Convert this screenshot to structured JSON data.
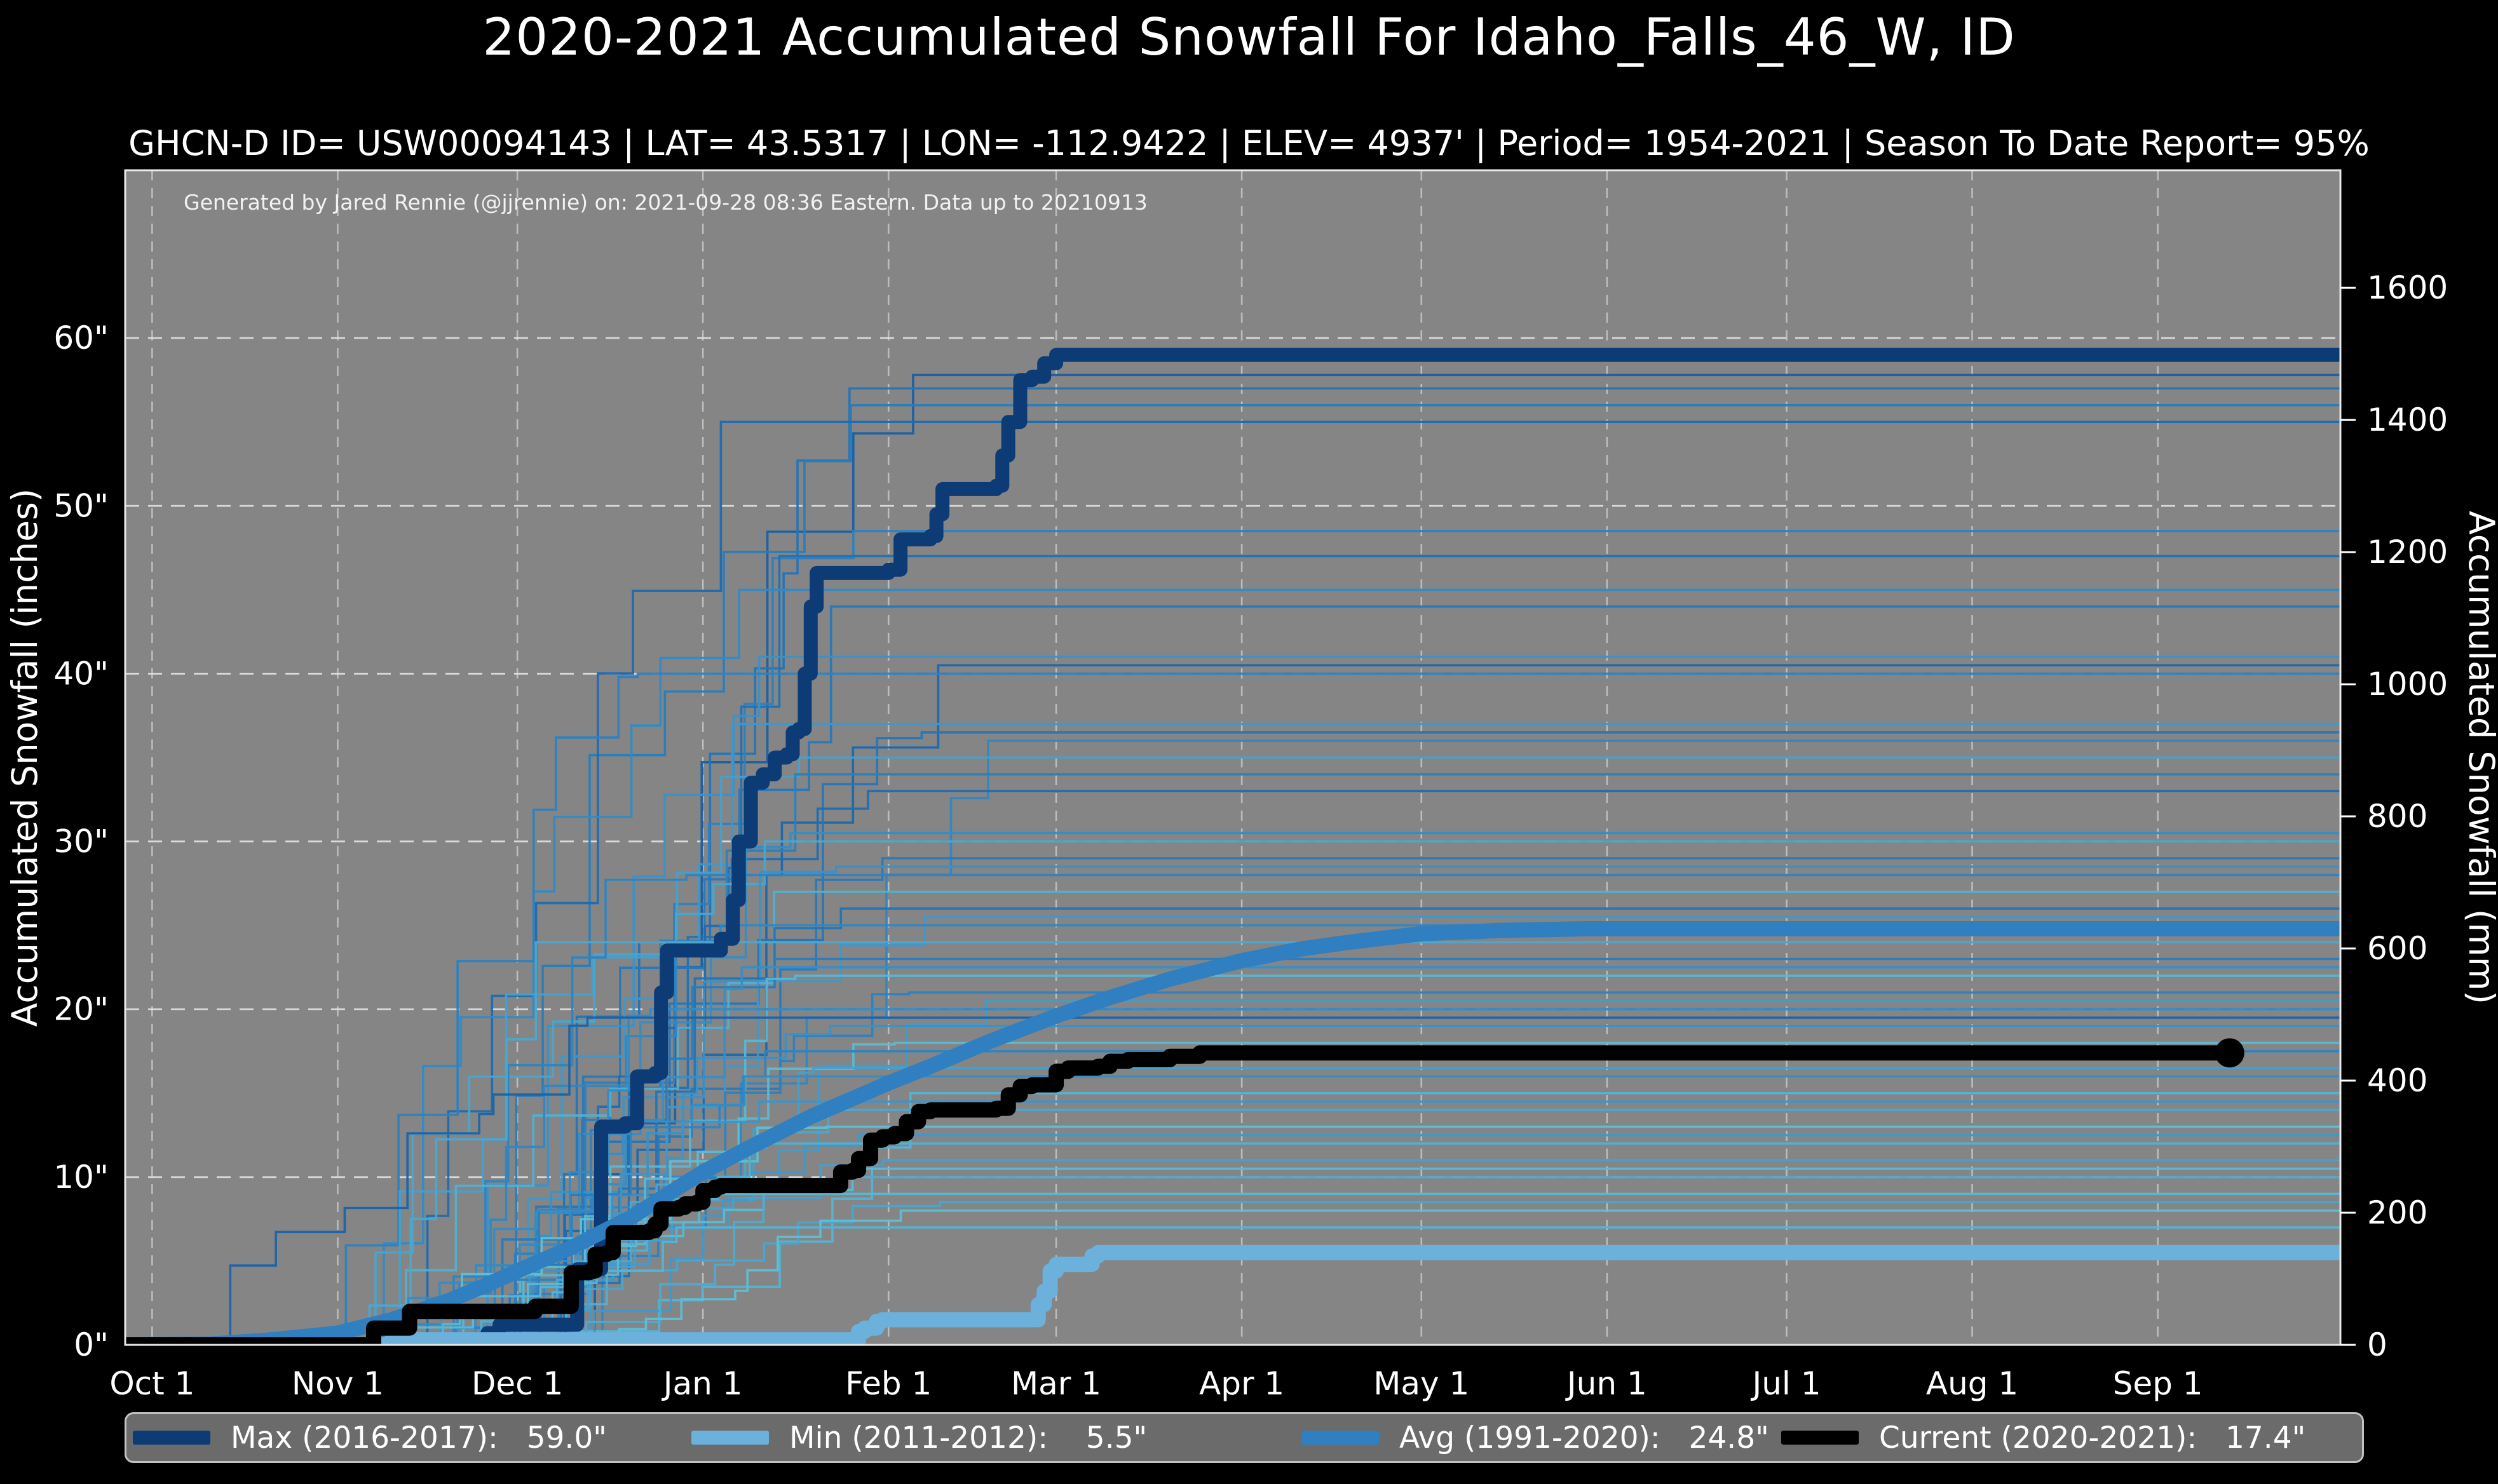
{
  "header": {
    "title": "2020-2021 Accumulated Snowfall For Idaho_Falls_46_W, ID",
    "subtitle": "GHCN-D ID= USW00094143 | LAT= 43.5317 | LON= -112.9422 | ELEV= 4937' | Period= 1954-2021 | Season To Date Report= 95%"
  },
  "watermark": "Generated by Jared Rennie (@jjrennie) on: 2021-09-28 08:36 Eastern. Data up to 20210913",
  "legend": {
    "items": [
      {
        "name": "max",
        "label": "Max (2016-2017):   59.0\"",
        "color": "#0d3b76"
      },
      {
        "name": "min",
        "label": "Min (2011-2012):    5.5\"",
        "color": "#6cb0dc"
      },
      {
        "name": "avg",
        "label": "Avg (1991-2020):   24.8\"",
        "color": "#2f7fc1"
      },
      {
        "name": "current",
        "label": "Current (2020-2021):   17.4\"",
        "color": "#000000"
      }
    ]
  },
  "chart_data": {
    "type": "line",
    "title": "2020-2021 Accumulated Snowfall For Idaho_Falls_46_W, ID",
    "x_axis": {
      "unit": "day-of-season (0 = Oct 1)",
      "domain": [
        -4.5,
        365.5
      ],
      "ticks": [
        {
          "label": "Oct 1",
          "day": 0
        },
        {
          "label": "Nov 1",
          "day": 31
        },
        {
          "label": "Dec 1",
          "day": 61
        },
        {
          "label": "Jan 1",
          "day": 92
        },
        {
          "label": "Feb 1",
          "day": 123
        },
        {
          "label": "Mar 1",
          "day": 151
        },
        {
          "label": "Apr 1",
          "day": 182
        },
        {
          "label": "May 1",
          "day": 212
        },
        {
          "label": "Jun 1",
          "day": 243
        },
        {
          "label": "Jul 1",
          "day": 273
        },
        {
          "label": "Aug 1",
          "day": 304
        },
        {
          "label": "Sep 1",
          "day": 335
        }
      ],
      "grid": true
    },
    "y_axis_left": {
      "label": "Accumulated Snowfall (inches)",
      "domain": [
        0,
        70
      ],
      "ticks": [
        0,
        10,
        20,
        30,
        40,
        50,
        60
      ],
      "tick_suffix": "\"",
      "grid": true
    },
    "y_axis_right": {
      "label": "Accumulated Snowfall (mm)",
      "domain_mm": [
        0,
        1778
      ],
      "ticks": [
        0,
        200,
        400,
        600,
        800,
        1000,
        1200,
        1400,
        1600
      ],
      "mm_per_inch": 25.4
    },
    "plot_style": {
      "background": "#858585",
      "grid_color_h": "#e3e3e3",
      "grid_color_v": "#c6c6c6",
      "spine_color": "#e8e8e8",
      "thin_palette": [
        "#64c7d8",
        "#3a93c9",
        "#1f6fb4",
        "#10407f"
      ]
    },
    "series": {
      "max": {
        "name": "Max (2016-2017)",
        "final": 59.0,
        "color": "#0d3b76",
        "width": 22,
        "style": "step",
        "points": [
          [
            -4.5,
            0
          ],
          [
            54,
            0
          ],
          [
            56,
            0.7
          ],
          [
            58,
            1.2
          ],
          [
            70,
            1.2
          ],
          [
            71,
            4.5
          ],
          [
            74,
            4.5
          ],
          [
            75,
            13.0
          ],
          [
            79,
            13.2
          ],
          [
            81,
            16.0
          ],
          [
            84,
            16.2
          ],
          [
            85,
            21.0
          ],
          [
            86,
            23.5
          ],
          [
            94,
            23.5
          ],
          [
            95,
            24.2
          ],
          [
            97,
            26.5
          ],
          [
            98,
            30.0
          ],
          [
            100,
            33.5
          ],
          [
            102,
            34.0
          ],
          [
            104,
            35.0
          ],
          [
            106,
            35.2
          ],
          [
            107,
            36.5
          ],
          [
            108,
            36.7
          ],
          [
            109,
            40.0
          ],
          [
            110,
            44.0
          ],
          [
            111,
            46.0
          ],
          [
            123,
            46.2
          ],
          [
            125,
            48.0
          ],
          [
            130,
            48.2
          ],
          [
            131,
            49.5
          ],
          [
            132,
            51.0
          ],
          [
            141,
            51.2
          ],
          [
            142,
            53.0
          ],
          [
            143,
            55.0
          ],
          [
            145,
            57.5
          ],
          [
            147,
            57.7
          ],
          [
            149,
            58.5
          ],
          [
            151,
            59.0
          ],
          [
            365.5,
            59.0
          ]
        ]
      },
      "avg": {
        "name": "Avg (1991-2020)",
        "final": 24.8,
        "color": "#2f7fc1",
        "width": 24,
        "style": "smooth",
        "points": [
          [
            -4.5,
            0
          ],
          [
            10,
            0.05
          ],
          [
            20,
            0.3
          ],
          [
            31,
            0.7
          ],
          [
            40,
            1.5
          ],
          [
            50,
            2.7
          ],
          [
            56,
            3.6
          ],
          [
            61,
            4.4
          ],
          [
            70,
            5.8
          ],
          [
            80,
            7.6
          ],
          [
            92,
            10.3
          ],
          [
            100,
            11.8
          ],
          [
            110,
            13.6
          ],
          [
            123,
            15.6
          ],
          [
            130,
            16.6
          ],
          [
            140,
            18.1
          ],
          [
            151,
            19.6
          ],
          [
            160,
            20.7
          ],
          [
            170,
            21.8
          ],
          [
            182,
            22.9
          ],
          [
            192,
            23.6
          ],
          [
            200,
            24.0
          ],
          [
            212,
            24.5
          ],
          [
            225,
            24.7
          ],
          [
            240,
            24.8
          ],
          [
            365.5,
            24.8
          ]
        ]
      },
      "min": {
        "name": "Min (2011-2012)",
        "final": 5.5,
        "color": "#6cb0dc",
        "width": 24,
        "style": "step",
        "points": [
          [
            -4.5,
            0
          ],
          [
            39,
            0
          ],
          [
            40,
            0.3
          ],
          [
            117,
            0.3
          ],
          [
            118,
            0.8
          ],
          [
            119,
            1.0
          ],
          [
            121,
            1.4
          ],
          [
            122,
            1.5
          ],
          [
            147,
            1.5
          ],
          [
            148,
            2.4
          ],
          [
            149,
            3.2
          ],
          [
            150,
            4.4
          ],
          [
            151,
            4.8
          ],
          [
            156,
            4.8
          ],
          [
            157,
            5.3
          ],
          [
            158,
            5.5
          ],
          [
            365.5,
            5.5
          ]
        ]
      },
      "current": {
        "name": "Current (2020-2021)",
        "final": 17.4,
        "color": "#000000",
        "width": 24,
        "style": "step",
        "end_marker": {
          "day": 347,
          "value": 17.4,
          "radius": 23
        },
        "points": [
          [
            -4.5,
            0
          ],
          [
            36,
            0
          ],
          [
            37,
            1.0
          ],
          [
            42,
            1.0
          ],
          [
            43,
            2.0
          ],
          [
            63,
            2.0
          ],
          [
            64,
            2.3
          ],
          [
            69,
            2.3
          ],
          [
            70,
            4.3
          ],
          [
            73,
            4.4
          ],
          [
            74,
            5.4
          ],
          [
            76,
            5.5
          ],
          [
            77,
            6.7
          ],
          [
            83,
            6.8
          ],
          [
            84,
            7.2
          ],
          [
            85,
            8.1
          ],
          [
            88,
            8.2
          ],
          [
            89,
            8.4
          ],
          [
            91,
            8.5
          ],
          [
            92,
            9.2
          ],
          [
            94,
            9.4
          ],
          [
            95,
            9.5
          ],
          [
            113,
            9.5
          ],
          [
            115,
            10.3
          ],
          [
            117,
            10.4
          ],
          [
            118,
            11.1
          ],
          [
            120,
            12.2
          ],
          [
            122,
            12.4
          ],
          [
            124,
            12.6
          ],
          [
            126,
            13.3
          ],
          [
            128,
            13.9
          ],
          [
            130,
            14.0
          ],
          [
            141,
            14.1
          ],
          [
            143,
            14.9
          ],
          [
            145,
            15.4
          ],
          [
            147,
            15.5
          ],
          [
            151,
            16.3
          ],
          [
            153,
            16.5
          ],
          [
            158,
            16.6
          ],
          [
            160,
            16.9
          ],
          [
            163,
            17.0
          ],
          [
            170,
            17.2
          ],
          [
            175,
            17.4
          ],
          [
            347,
            17.4
          ]
        ]
      }
    },
    "background_years": [
      {
        "f": 57.8,
        "s": 62,
        "k": 11,
        "t": 0.78
      },
      {
        "f": 57.0,
        "s": 55,
        "k": 12,
        "t": 0.62
      },
      {
        "f": 56.0,
        "s": 48,
        "k": 13,
        "t": 0.55
      },
      {
        "f": 55.0,
        "s": 40,
        "k": 14,
        "t": 0.7
      },
      {
        "f": 48.5,
        "s": 58,
        "k": 15,
        "t": 0.5
      },
      {
        "f": 47.0,
        "s": 66,
        "k": 16,
        "t": 0.65
      },
      {
        "f": 45.0,
        "s": 35,
        "k": 17,
        "t": 0.42
      },
      {
        "f": 44.0,
        "s": 52,
        "k": 18,
        "t": 0.58
      },
      {
        "f": 41.0,
        "s": 44,
        "k": 19,
        "t": 0.35
      },
      {
        "f": 40.5,
        "s": 60,
        "k": 20,
        "t": 0.72
      },
      {
        "f": 40.0,
        "s": 30,
        "k": 21,
        "t": 0.5
      },
      {
        "f": 37.0,
        "s": 56,
        "k": 22,
        "t": 0.3
      },
      {
        "f": 36.5,
        "s": 47,
        "k": 23,
        "t": 0.6
      },
      {
        "f": 36.0,
        "s": 64,
        "k": 24,
        "t": 0.45
      },
      {
        "f": 35.0,
        "s": 38,
        "k": 25,
        "t": 0.25
      },
      {
        "f": 34.0,
        "s": 50,
        "k": 26,
        "t": 0.52
      },
      {
        "f": 33.0,
        "s": 58,
        "k": 27,
        "t": 0.68
      },
      {
        "f": 30.5,
        "s": 42,
        "k": 28,
        "t": 0.4
      },
      {
        "f": 30.0,
        "s": 33,
        "k": 29,
        "t": 0.22
      },
      {
        "f": 29.0,
        "s": 55,
        "k": 30,
        "t": 0.57
      },
      {
        "f": 28.5,
        "s": 62,
        "k": 31,
        "t": 0.35
      },
      {
        "f": 28.0,
        "s": 46,
        "k": 32,
        "t": 0.48
      },
      {
        "f": 27.0,
        "s": 36,
        "k": 33,
        "t": 0.15
      },
      {
        "f": 26.0,
        "s": 53,
        "k": 34,
        "t": 0.62
      },
      {
        "f": 25.5,
        "s": 60,
        "k": 35,
        "t": 0.3
      },
      {
        "f": 25.0,
        "s": 44,
        "k": 36,
        "t": 0.45
      },
      {
        "f": 24.0,
        "s": 31,
        "k": 37,
        "t": 0.2
      },
      {
        "f": 23.0,
        "s": 49,
        "k": 38,
        "t": 0.55
      },
      {
        "f": 22.5,
        "s": 57,
        "k": 39,
        "t": 0.38
      },
      {
        "f": 22.0,
        "s": 40,
        "k": 40,
        "t": 0.1
      },
      {
        "f": 21.0,
        "s": 52,
        "k": 41,
        "t": 0.5
      },
      {
        "f": 20.5,
        "s": 63,
        "k": 42,
        "t": 0.28
      },
      {
        "f": 20.0,
        "s": 34,
        "k": 43,
        "t": 0.42
      },
      {
        "f": 19.5,
        "s": 8,
        "k": 44,
        "t": 0.75
      },
      {
        "f": 19.0,
        "s": 45,
        "k": 45,
        "t": 0.35
      },
      {
        "f": 18.0,
        "s": 55,
        "k": 46,
        "t": 0.08
      },
      {
        "f": 17.5,
        "s": 38,
        "k": 47,
        "t": 0.48
      },
      {
        "f": 16.5,
        "s": 48,
        "k": 48,
        "t": 0.25
      },
      {
        "f": 16.0,
        "s": 28,
        "k": 49,
        "t": 0.4
      },
      {
        "f": 15.0,
        "s": 58,
        "k": 50,
        "t": 0.12
      },
      {
        "f": 14.5,
        "s": 42,
        "k": 51,
        "t": 0.32
      },
      {
        "f": 14.0,
        "s": 50,
        "k": 52,
        "t": 0.2
      },
      {
        "f": 13.0,
        "s": 36,
        "k": 53,
        "t": 0.05
      },
      {
        "f": 12.5,
        "s": 61,
        "k": 54,
        "t": 0.3
      },
      {
        "f": 12.0,
        "s": 46,
        "k": 55,
        "t": 0.15
      },
      {
        "f": 11.0,
        "s": 54,
        "k": 56,
        "t": 0.25
      },
      {
        "f": 10.5,
        "s": 32,
        "k": 57,
        "t": 0.08
      },
      {
        "f": 10.0,
        "s": 59,
        "k": 58,
        "t": 0.18
      },
      {
        "f": 9.0,
        "s": 43,
        "k": 59,
        "t": 0.1
      },
      {
        "f": 8.5,
        "s": 51,
        "k": 60,
        "t": 0.22
      },
      {
        "f": 8.0,
        "s": 65,
        "k": 61,
        "t": 0.05
      },
      {
        "f": 7.0,
        "s": 47,
        "k": 62,
        "t": 0.12
      }
    ]
  }
}
